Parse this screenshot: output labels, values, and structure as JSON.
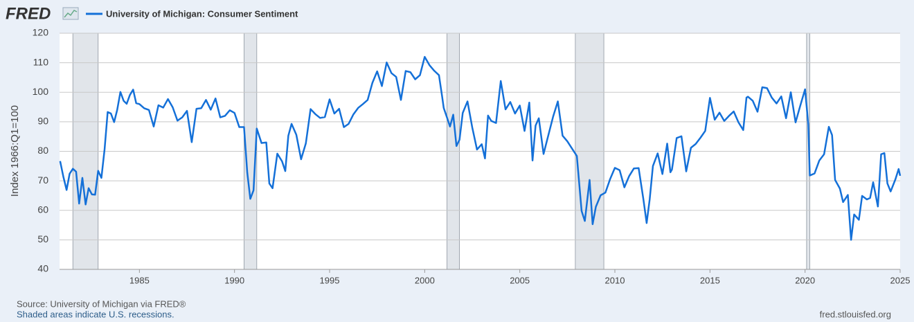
{
  "logo": "FRED",
  "chart_data": {
    "type": "line",
    "series": [
      {
        "name": "University of Michigan: Consumer Sentiment",
        "color": "#1470d8",
        "x": [
          1980.83,
          1981.0,
          1981.17,
          1981.33,
          1981.5,
          1981.67,
          1981.83,
          1982.0,
          1982.17,
          1982.33,
          1982.5,
          1982.67,
          1982.83,
          1983.0,
          1983.17,
          1983.33,
          1983.5,
          1983.67,
          1983.83,
          1984.0,
          1984.17,
          1984.33,
          1984.5,
          1984.67,
          1984.83,
          1985.0,
          1985.25,
          1985.5,
          1985.75,
          1986.0,
          1986.25,
          1986.5,
          1986.75,
          1987.0,
          1987.25,
          1987.5,
          1987.75,
          1988.0,
          1988.25,
          1988.5,
          1988.75,
          1989.0,
          1989.25,
          1989.5,
          1989.75,
          1990.0,
          1990.25,
          1990.5,
          1990.67,
          1990.83,
          1991.0,
          1991.17,
          1991.42,
          1991.67,
          1991.83,
          1992.0,
          1992.25,
          1992.5,
          1992.67,
          1992.83,
          1993.0,
          1993.25,
          1993.5,
          1993.75,
          1994.0,
          1994.25,
          1994.5,
          1994.75,
          1995.0,
          1995.25,
          1995.5,
          1995.75,
          1996.0,
          1996.25,
          1996.5,
          1996.75,
          1997.0,
          1997.25,
          1997.5,
          1997.75,
          1998.0,
          1998.25,
          1998.5,
          1998.75,
          1999.0,
          1999.25,
          1999.5,
          1999.75,
          2000.0,
          2000.25,
          2000.5,
          2000.75,
          2000.92,
          2001.0,
          2001.17,
          2001.33,
          2001.5,
          2001.67,
          2001.83,
          2002.0,
          2002.25,
          2002.5,
          2002.75,
          2003.0,
          2003.17,
          2003.33,
          2003.5,
          2003.75,
          2004.0,
          2004.25,
          2004.5,
          2004.75,
          2005.0,
          2005.25,
          2005.5,
          2005.67,
          2005.83,
          2006.0,
          2006.25,
          2006.5,
          2006.75,
          2007.0,
          2007.25,
          2007.5,
          2007.75,
          2008.0,
          2008.25,
          2008.42,
          2008.67,
          2008.83,
          2009.0,
          2009.25,
          2009.5,
          2009.75,
          2010.0,
          2010.25,
          2010.5,
          2010.75,
          2011.0,
          2011.25,
          2011.5,
          2011.67,
          2011.83,
          2012.0,
          2012.25,
          2012.5,
          2012.75,
          2012.92,
          2013.0,
          2013.25,
          2013.5,
          2013.75,
          2014.0,
          2014.25,
          2014.5,
          2014.75,
          2015.0,
          2015.25,
          2015.5,
          2015.75,
          2016.0,
          2016.25,
          2016.5,
          2016.75,
          2016.92,
          2017.0,
          2017.25,
          2017.5,
          2017.75,
          2018.0,
          2018.25,
          2018.5,
          2018.75,
          2019.0,
          2019.25,
          2019.5,
          2019.75,
          2020.0,
          2020.17,
          2020.25,
          2020.5,
          2020.75,
          2021.0,
          2021.25,
          2021.42,
          2021.58,
          2021.83,
          2022.0,
          2022.25,
          2022.42,
          2022.58,
          2022.83,
          2023.0,
          2023.25,
          2023.42,
          2023.58,
          2023.83,
          2024.0,
          2024.17,
          2024.33,
          2024.5,
          2024.75,
          2024.92,
          2025.0
        ],
        "values": [
          76.7,
          71.4,
          66.9,
          72.4,
          74.1,
          73.1,
          62.3,
          71,
          62,
          67.5,
          65.4,
          65.3,
          73.4,
          71,
          80.8,
          93.3,
          92.8,
          89.9,
          94,
          100.1,
          97.1,
          96.1,
          99.1,
          100.9,
          96.3,
          96,
          94.6,
          94,
          88.4,
          95.6,
          94.8,
          97.7,
          94.9,
          90.4,
          91.5,
          93.7,
          83.1,
          94.4,
          94.6,
          97.4,
          94.1,
          97.9,
          91.5,
          92,
          93.9,
          93,
          88.2,
          88.2,
          72.8,
          63.9,
          66.8,
          87.7,
          82.8,
          83,
          69.1,
          67.5,
          79.2,
          76.6,
          73.3,
          85.3,
          89.3,
          85.6,
          77.3,
          82.7,
          94.3,
          92.6,
          91.3,
          91.6,
          97.6,
          92.8,
          94.4,
          88.2,
          89.3,
          92.5,
          94.7,
          96,
          97.4,
          103.2,
          107.1,
          102.1,
          110.1,
          106.5,
          105.2,
          97.4,
          107.2,
          106.8,
          104.4,
          105.8,
          112,
          109.2,
          107.3,
          105.8,
          98.4,
          94.7,
          91.5,
          88.4,
          92.4,
          81.8,
          83.9,
          93,
          96.9,
          88.1,
          80.6,
          82.4,
          77.6,
          92.1,
          90.3,
          89.6,
          103.8,
          94.2,
          96.7,
          92.8,
          95.5,
          86.9,
          96.5,
          76.9,
          88.7,
          91.2,
          79.1,
          85.4,
          91.7,
          96.9,
          85.3,
          83.4,
          80.9,
          78.4,
          59.8,
          56.4,
          70.3,
          55.3,
          61.2,
          65.1,
          66,
          70.6,
          74.4,
          73.6,
          67.8,
          71.6,
          74.2,
          74.3,
          63.7,
          55.7,
          63.7,
          75,
          79.3,
          72.3,
          82.6,
          72.9,
          73.8,
          84.5,
          85.1,
          73.2,
          81.2,
          82.5,
          84.6,
          86.9,
          98.1,
          90.7,
          93.1,
          90.3,
          92,
          93.5,
          89.8,
          87.2,
          98.2,
          98.5,
          97.1,
          93.4,
          101.7,
          101.4,
          98.2,
          96.2,
          98.6,
          91.2,
          100,
          89.8,
          95.5,
          101,
          89.1,
          71.8,
          72.5,
          76.9,
          79,
          88.3,
          85.5,
          70.3,
          67.4,
          62.8,
          65.2,
          50,
          58.6,
          56.8,
          64.9,
          63.7,
          64.2,
          69.5,
          61.3,
          79,
          79.4,
          69.1,
          66.4,
          70.5,
          74,
          71.7
        ]
      }
    ],
    "recessions": [
      [
        1981.5,
        1982.83
      ],
      [
        1990.5,
        1991.17
      ],
      [
        2001.17,
        2001.83
      ],
      [
        2007.92,
        2009.42
      ],
      [
        2020.08,
        2020.25
      ]
    ],
    "y_label": "Index 1966:Q1=100",
    "xlim": [
      1980.8,
      2025.0
    ],
    "xticks": [
      1985,
      1990,
      1995,
      2000,
      2005,
      2010,
      2015,
      2020,
      2025
    ],
    "ylim": [
      40,
      120
    ],
    "yticks": [
      40,
      50,
      60,
      70,
      80,
      90,
      100,
      110,
      120
    ],
    "grid": true
  },
  "footer": {
    "source": "Source: University of Michigan via FRED®",
    "note": "Shaded areas indicate U.S. recessions.",
    "site": "fred.stlouisfed.org"
  }
}
